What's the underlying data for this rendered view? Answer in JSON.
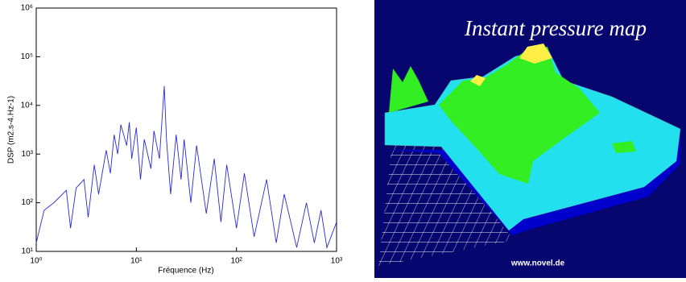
{
  "chart_data": [
    {
      "type": "line",
      "ylabel": "DSP (m2.s-4.Hz-1)",
      "xlabel": "Fréquence (Hz)",
      "log_x": true,
      "log_y": true,
      "color": "#2a2ad0",
      "xlim": [
        1,
        1000
      ],
      "ylim": [
        10,
        1000000
      ],
      "xticks": [
        {
          "value": 1,
          "label": "10⁰"
        },
        {
          "value": 10,
          "label": "10¹"
        },
        {
          "value": 100,
          "label": "10²"
        },
        {
          "value": 1000,
          "label": "10³"
        }
      ],
      "yticks": [
        {
          "value": 10,
          "label": "10¹"
        },
        {
          "value": 100,
          "label": "10²"
        },
        {
          "value": 1000,
          "label": "10³"
        },
        {
          "value": 10000,
          "label": "10⁴"
        },
        {
          "value": 100000,
          "label": "10⁵"
        },
        {
          "value": 1000000,
          "label": "10⁶"
        }
      ],
      "x": [
        1,
        1.2,
        1.5,
        2,
        2.2,
        2.5,
        3,
        3.3,
        3.8,
        4.2,
        5,
        5.5,
        6,
        6.5,
        7,
        8,
        8.5,
        9,
        10,
        11,
        12,
        14,
        15,
        17,
        19,
        20,
        22,
        25,
        28,
        30,
        35,
        40,
        50,
        60,
        70,
        80,
        100,
        120,
        150,
        200,
        250,
        300,
        400,
        500,
        600,
        700,
        800,
        1000
      ],
      "values": [
        15,
        70,
        100,
        180,
        30,
        200,
        300,
        50,
        600,
        150,
        1200,
        400,
        2500,
        1000,
        4000,
        1500,
        4500,
        800,
        3500,
        300,
        2000,
        500,
        3000,
        800,
        25000,
        2000,
        150,
        2500,
        300,
        2000,
        100,
        1500,
        60,
        800,
        40,
        600,
        30,
        400,
        20,
        300,
        15,
        150,
        12,
        100,
        15,
        70,
        12,
        40
      ]
    },
    {
      "type": "image",
      "title": "Instant pressure map",
      "caption": "www.novel.de"
    }
  ]
}
